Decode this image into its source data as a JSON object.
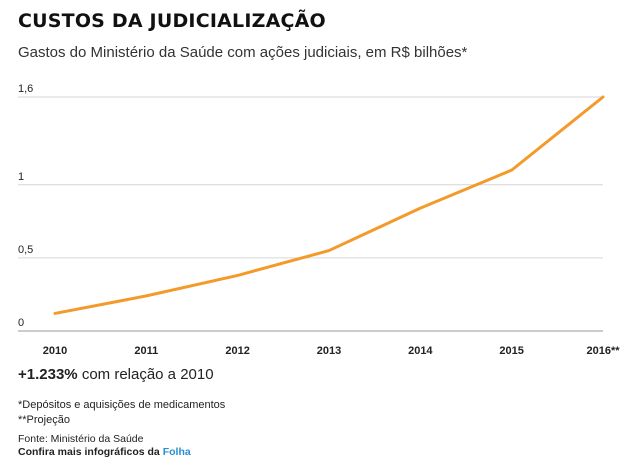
{
  "header": {
    "title": "CUSTOS DA JUDICIALIZAÇÃO",
    "subtitle": "Gastos do Ministério da Saúde com ações judiciais, em R$ bilhões*"
  },
  "chart_data": {
    "type": "line",
    "title": "CUSTOS DA JUDICIALIZAÇÃO",
    "subtitle": "Gastos do Ministério da Saúde com ações judiciais, em R$ bilhões*",
    "xlabel": "",
    "ylabel": "",
    "categories": [
      "2010",
      "2011",
      "2012",
      "2013",
      "2014",
      "2015",
      "2016**"
    ],
    "series": [
      {
        "values": [
          0.12,
          0.24,
          0.38,
          0.55,
          0.84,
          1.1,
          1.6
        ],
        "color": "#f39a2b"
      }
    ],
    "yticks": [
      0,
      0.5,
      1,
      1.6
    ],
    "ytick_labels": [
      "0",
      "0,5",
      "1",
      "1,6"
    ],
    "ylim": [
      0,
      1.6
    ],
    "grid": true
  },
  "highlight": {
    "value": "+1.233%",
    "text": "com relação a 2010"
  },
  "notes": {
    "n1": "*Depósitos e aquisições de medicamentos",
    "n2": "**Projeção"
  },
  "footer": {
    "source": "Fonte: Ministério da Saúde",
    "more": "Confira mais infográficos da",
    "brand": "Folha"
  },
  "colors": {
    "series": "#f39a2b",
    "grid": "#d6d6d6",
    "brand": "#2a8fd0"
  }
}
